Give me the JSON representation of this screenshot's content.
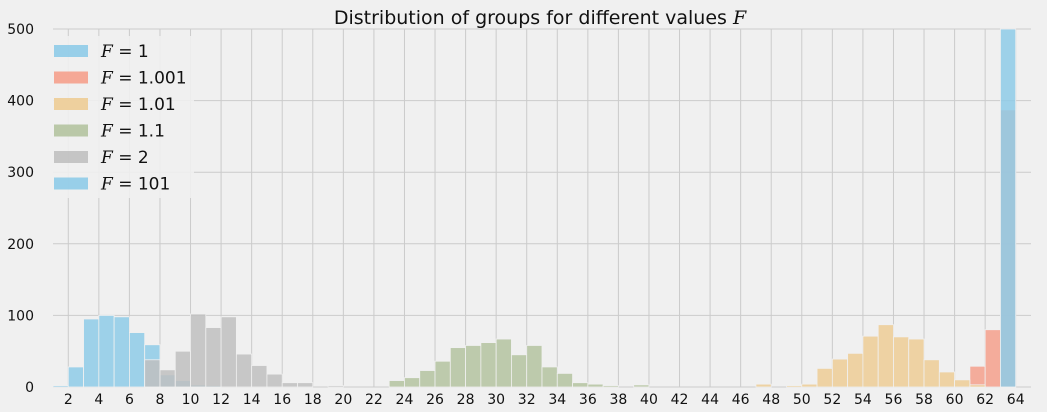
{
  "chart_data": {
    "type": "bar",
    "title": "Distribution of groups for different values F",
    "title_prefix": "Distribution of groups for different values ",
    "title_var": "F",
    "xlabel": "",
    "ylabel": "",
    "xlim": [
      1,
      65
    ],
    "ylim": [
      0,
      500
    ],
    "xticks": [
      2,
      4,
      6,
      8,
      10,
      12,
      14,
      16,
      18,
      20,
      22,
      24,
      26,
      28,
      30,
      32,
      34,
      36,
      38,
      40,
      42,
      44,
      46,
      48,
      50,
      52,
      54,
      56,
      58,
      60,
      62,
      64
    ],
    "yticks": [
      0,
      100,
      200,
      300,
      400,
      500
    ],
    "grid": true,
    "legend_position": "top-left",
    "series": [
      {
        "name": "F = 1",
        "legend_var": "F",
        "legend_value": "= 1",
        "color": "#8ecbe8",
        "x": [
          1,
          2,
          3,
          4,
          5,
          6,
          7,
          8,
          9,
          10,
          11
        ],
        "values": [
          2,
          28,
          95,
          100,
          98,
          76,
          59,
          17,
          9,
          3,
          2
        ]
      },
      {
        "name": "F = 1.001",
        "legend_var": "F",
        "legend_value": "= 1.001",
        "color": "#f5a08c",
        "x": [
          61,
          62,
          63
        ],
        "values": [
          29,
          80,
          387
        ]
      },
      {
        "name": "F = 1.01",
        "legend_var": "F",
        "legend_value": "= 1.01",
        "color": "#edcc95",
        "x": [
          47,
          49,
          50,
          51,
          52,
          53,
          54,
          55,
          56,
          57,
          58,
          59,
          60,
          61
        ],
        "values": [
          4,
          2,
          4,
          26,
          39,
          47,
          71,
          87,
          70,
          67,
          38,
          21,
          10,
          3
        ]
      },
      {
        "name": "F = 1.1",
        "legend_var": "F",
        "legend_value": "= 1.1",
        "color": "#b4c3a0",
        "x": [
          23,
          24,
          25,
          26,
          27,
          28,
          29,
          30,
          31,
          32,
          33,
          34,
          35,
          36,
          37,
          39
        ],
        "values": [
          9,
          13,
          23,
          36,
          55,
          58,
          62,
          67,
          45,
          58,
          28,
          19,
          6,
          4,
          2,
          3
        ]
      },
      {
        "name": "F = 2",
        "legend_var": "F",
        "legend_value": "= 2",
        "color": "#c0c0c0",
        "x": [
          7,
          8,
          9,
          10,
          11,
          12,
          13,
          14,
          15,
          16,
          17,
          19
        ],
        "values": [
          38,
          24,
          50,
          102,
          83,
          98,
          46,
          30,
          18,
          6,
          6,
          2
        ]
      },
      {
        "name": "F = 101",
        "legend_var": "F",
        "legend_value": "= 101",
        "color": "#8ecbe8",
        "x": [
          63
        ],
        "values": [
          500
        ]
      }
    ]
  }
}
